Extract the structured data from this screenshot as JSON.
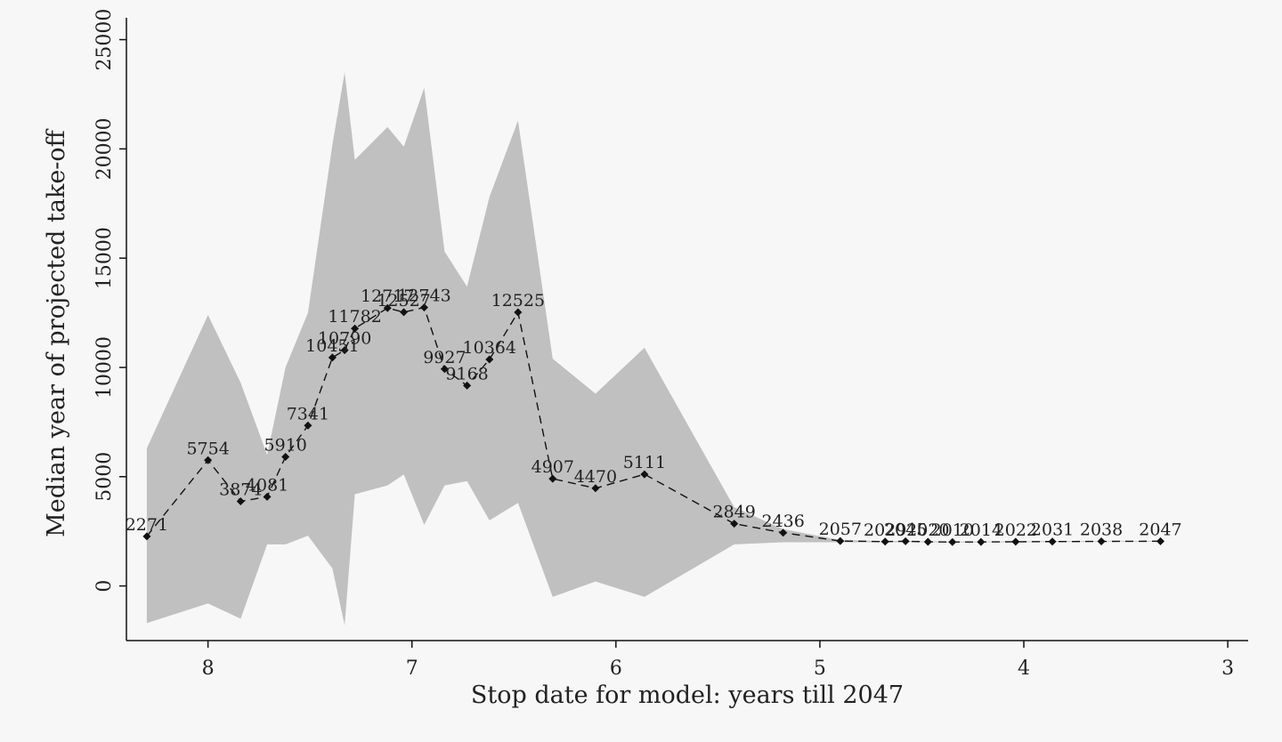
{
  "chart_data": {
    "type": "line",
    "title": "",
    "xlabel": "Stop date for model: years till 2047",
    "ylabel": "Median year of projected take-off",
    "xlim": [
      8.4,
      2.9
    ],
    "ylim": [
      -2500,
      26000
    ],
    "x_reversed": true,
    "x_ticks": [
      8,
      7,
      6,
      5,
      4,
      3
    ],
    "y_ticks": [
      0,
      5000,
      10000,
      15000,
      20000,
      25000
    ],
    "grid": false,
    "legend": "none",
    "colors": {
      "band": "#c0c0c0",
      "line": "#111111",
      "background": "#f7f7f7"
    },
    "median": {
      "x": [
        8.3,
        8.0,
        7.84,
        7.71,
        7.62,
        7.51,
        7.39,
        7.33,
        7.28,
        7.12,
        7.04,
        6.94,
        6.84,
        6.73,
        6.62,
        6.48,
        6.31,
        6.1,
        5.86,
        5.42,
        5.18,
        4.9,
        4.68,
        4.58,
        4.47,
        4.35,
        4.21,
        4.04,
        3.86,
        3.62,
        3.33
      ],
      "y": [
        2271,
        5754,
        3874,
        4081,
        5910,
        7341,
        10451,
        10790,
        11782,
        12717,
        12527,
        12743,
        9927,
        9168,
        10364,
        12525,
        4907,
        4470,
        5111,
        2849,
        2436,
        2057,
        2029,
        2045,
        2020,
        2010,
        2014,
        2022,
        2031,
        2038,
        2047
      ],
      "labels": [
        "2271",
        "5754",
        "3874",
        "4081",
        "5910",
        "7341",
        "10451",
        "10790",
        "11782",
        "12717",
        "12527",
        "12743",
        "9927",
        "9168",
        "10364",
        "12525",
        "4907",
        "4470",
        "5111",
        "2849",
        "2436",
        "2057",
        "2029",
        "2045",
        "2020",
        "2010",
        "2014",
        "2022",
        "2031",
        "2038",
        "2047"
      ]
    },
    "band": {
      "x": [
        8.3,
        8.0,
        7.84,
        7.71,
        7.62,
        7.51,
        7.39,
        7.33,
        7.28,
        7.12,
        7.04,
        6.94,
        6.84,
        6.73,
        6.62,
        6.48,
        6.31,
        6.1,
        5.86,
        5.42,
        5.18,
        4.9,
        4.68,
        4.58,
        4.47,
        4.35,
        4.21,
        4.04,
        3.86,
        3.62,
        3.33
      ],
      "upper": [
        6300,
        12400,
        9300,
        6000,
        10000,
        12500,
        20200,
        23500,
        19500,
        21000,
        20100,
        22800,
        15300,
        13700,
        17800,
        21300,
        10400,
        8800,
        10900,
        3600,
        2600,
        2100,
        2050,
        2060,
        2040,
        2030,
        2030,
        2040,
        2050,
        2050,
        2060
      ],
      "lower": [
        -1700,
        -800,
        -1500,
        1900,
        1900,
        2300,
        800,
        -1800,
        4200,
        4600,
        5100,
        2800,
        4600,
        4800,
        3000,
        3800,
        -500,
        200,
        -500,
        1900,
        2000,
        2000,
        2000,
        2010,
        2000,
        1990,
        2000,
        2000,
        2010,
        2020,
        2030
      ]
    }
  }
}
